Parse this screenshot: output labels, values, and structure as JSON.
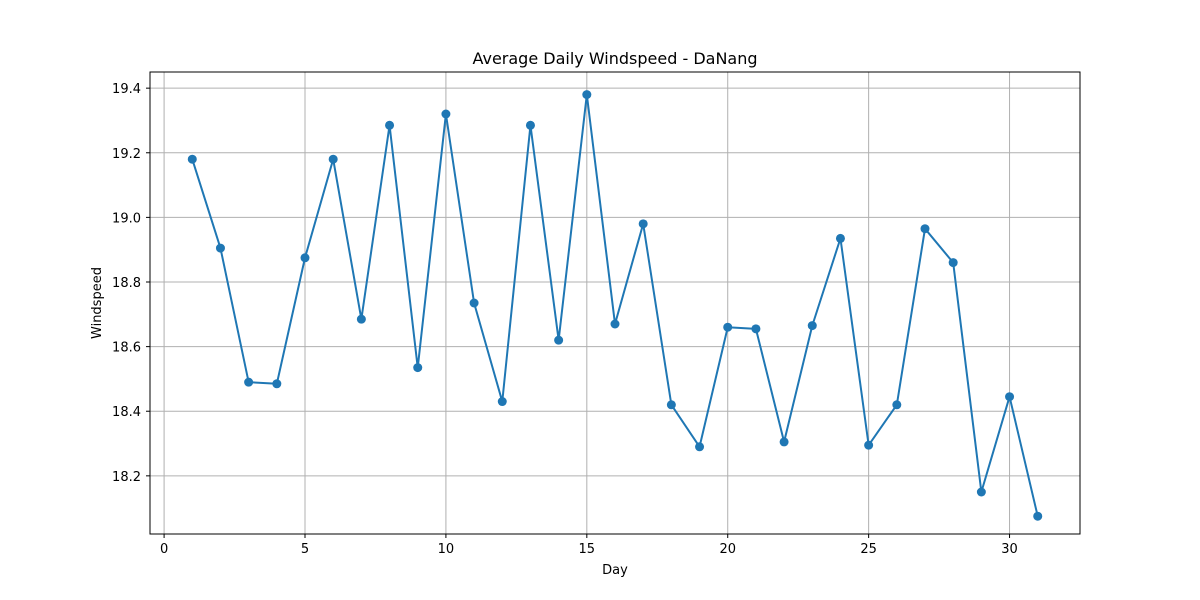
{
  "chart_data": {
    "type": "line",
    "title": "Average Daily Windspeed - DaNang",
    "xlabel": "Day",
    "ylabel": "Windspeed",
    "xlim": [
      -0.5,
      32.5
    ],
    "ylim": [
      18.02,
      19.45
    ],
    "xticks": [
      0,
      5,
      10,
      15,
      20,
      25,
      30
    ],
    "yticks": [
      18.2,
      18.4,
      18.6,
      18.8,
      19.0,
      19.2,
      19.4
    ],
    "grid": true,
    "marker": "circle",
    "series": [
      {
        "color": "#1f77b4",
        "x": [
          1,
          2,
          3,
          4,
          5,
          6,
          7,
          8,
          9,
          10,
          11,
          12,
          13,
          14,
          15,
          16,
          17,
          18,
          19,
          20,
          21,
          22,
          23,
          24,
          25,
          26,
          27,
          28,
          29,
          30,
          31
        ],
        "y": [
          19.18,
          18.905,
          18.49,
          18.485,
          18.875,
          19.18,
          18.685,
          19.285,
          18.535,
          19.32,
          18.735,
          18.43,
          19.285,
          18.62,
          19.38,
          18.67,
          18.98,
          18.42,
          18.29,
          18.66,
          18.655,
          18.305,
          18.665,
          18.935,
          18.295,
          18.42,
          18.965,
          18.86,
          18.15,
          18.445,
          18.075
        ]
      }
    ]
  }
}
